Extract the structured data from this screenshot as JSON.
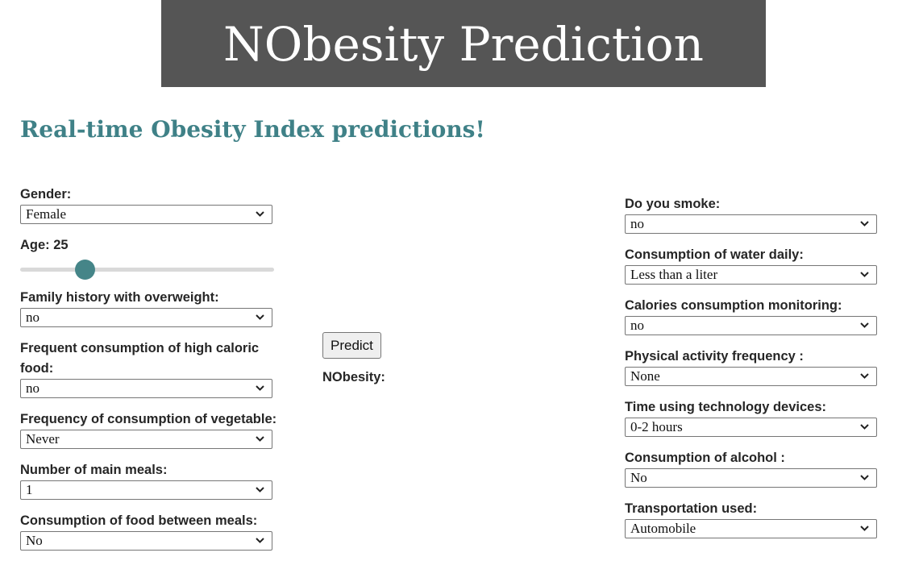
{
  "header": {
    "title": "NObesity Prediction"
  },
  "subtitle": "Real-time Obesity Index predictions!",
  "left_fields": {
    "gender": {
      "label": "Gender:",
      "value": "Female"
    },
    "age": {
      "label_prefix": "Age: ",
      "value": 25,
      "min": 14,
      "max": 61
    },
    "family_history": {
      "label": "Family history with overweight:",
      "value": "no"
    },
    "high_caloric": {
      "label": "Frequent consumption of high caloric food:",
      "value": "no"
    },
    "vegetable": {
      "label": "Frequency of consumption of vegetable:",
      "value": "Never"
    },
    "main_meals": {
      "label": "Number of main meals:",
      "value": "1"
    },
    "between_meals": {
      "label": "Consumption of food between meals:",
      "value": "No"
    }
  },
  "right_fields": {
    "smoke": {
      "label": "Do you smoke:",
      "value": "no"
    },
    "water": {
      "label": "Consumption of water daily:",
      "value": "Less than a liter"
    },
    "calories": {
      "label": "Calories consumption monitoring:",
      "value": "no"
    },
    "activity": {
      "label": "Physical activity frequency :",
      "value": "None"
    },
    "technology": {
      "label": "Time using technology devices:",
      "value": "0-2 hours"
    },
    "alcohol": {
      "label": "Consumption of alcohol :",
      "value": "No"
    },
    "transport": {
      "label": "Transportation used:",
      "value": "Automobile"
    }
  },
  "predict": {
    "button_label": "Predict",
    "result_label": "NObesity:"
  },
  "icons": {
    "select_arrow": "chevron-down-icon"
  }
}
